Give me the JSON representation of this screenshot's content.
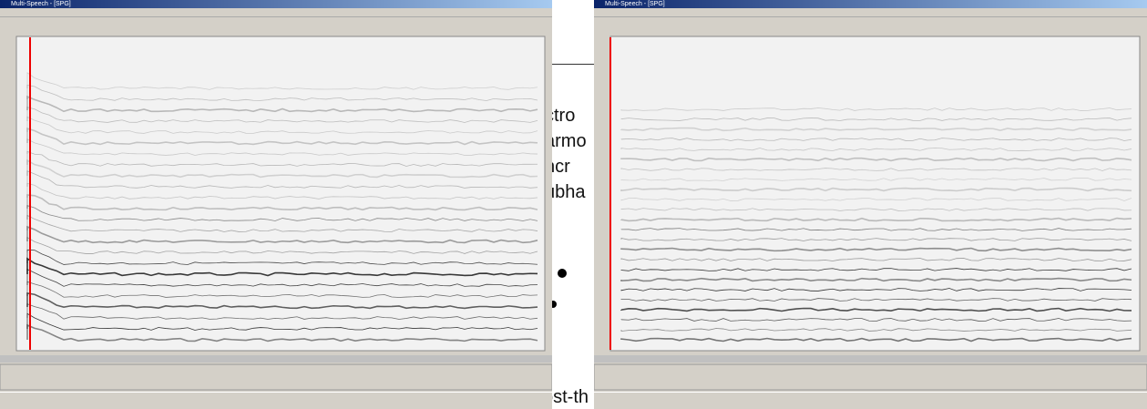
{
  "windows": [
    {
      "title": "Multi-Speech - [SPG]"
    },
    {
      "title": "Multi-Speech - [SPG]"
    }
  ],
  "slide": {
    "fragments": [
      "ctro",
      "armo",
      "ncr",
      "ubha",
      "ost-th"
    ]
  }
}
